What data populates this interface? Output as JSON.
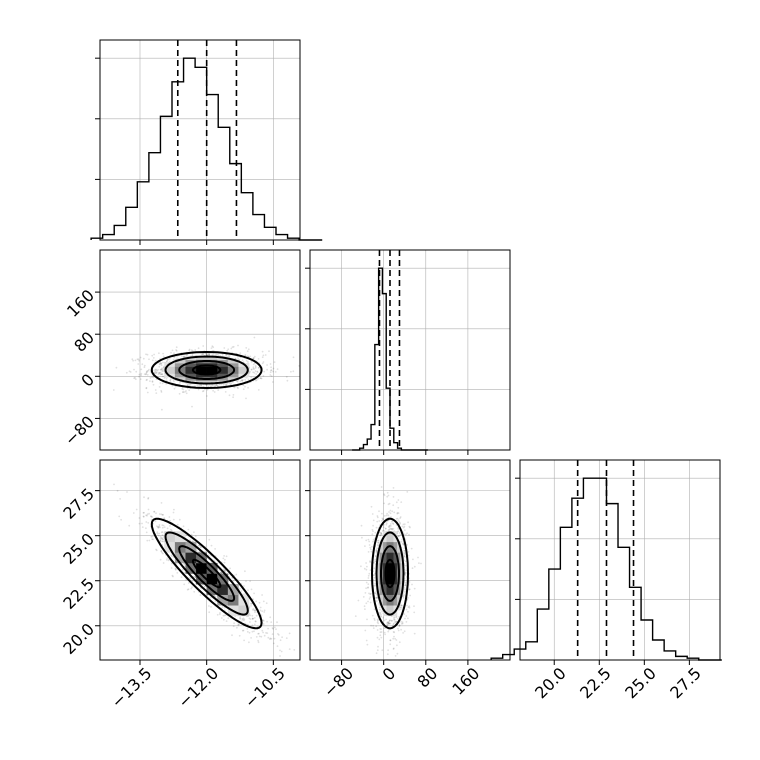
{
  "chart_data": {
    "type": "corner",
    "parameters": [
      {
        "name": "",
        "range": [
          -14.4,
          -9.9
        ],
        "ticks": [
          -13.5,
          -12.0,
          -10.5
        ],
        "tick_labels": [
          "−13.5",
          "−12.0",
          "−10.5"
        ],
        "mean": -12.0,
        "std": 0.65,
        "quantiles": [
          -12.65,
          -12.0,
          -11.33
        ]
      },
      {
        "name": "",
        "range": [
          -140,
          240
        ],
        "ticks": [
          -80,
          0,
          80,
          160
        ],
        "tick_labels": [
          "−80",
          "0",
          "80",
          "160"
        ],
        "mean": 12,
        "std": 18,
        "quantiles": [
          -8,
          12,
          30
        ]
      },
      {
        "name": "",
        "range": [
          18.1,
          29.2
        ],
        "ticks": [
          20.0,
          22.5,
          25.0,
          27.5
        ],
        "tick_labels": [
          "20.0",
          "22.5",
          "25.0",
          "27.5"
        ],
        "mean": 22.9,
        "std": 1.6,
        "quantiles": [
          21.3,
          22.9,
          24.4
        ]
      }
    ],
    "correlations": {
      "0-1": 0.0,
      "0-2": -0.9,
      "1-2": 0.0
    },
    "histograms": {
      "bins": 20,
      "p0_counts": [
        1,
        3,
        8,
        18,
        32,
        48,
        68,
        87,
        100,
        95,
        80,
        62,
        42,
        26,
        14,
        7,
        3,
        1,
        0,
        0
      ],
      "p1_counts": [
        0,
        0,
        1,
        3,
        6,
        14,
        58,
        100,
        86,
        34,
        12,
        4,
        1,
        0,
        0,
        0,
        0,
        0,
        0,
        0
      ],
      "p2_counts": [
        1,
        3,
        6,
        10,
        28,
        50,
        73,
        89,
        100,
        100,
        86,
        62,
        40,
        22,
        11,
        5,
        2,
        1,
        0,
        0
      ]
    },
    "contour_levels": [
      "0.5 sigma",
      "1 sigma",
      "1.5 sigma",
      "2 sigma"
    ],
    "grid": true,
    "quantile_line_style": "dashed"
  }
}
